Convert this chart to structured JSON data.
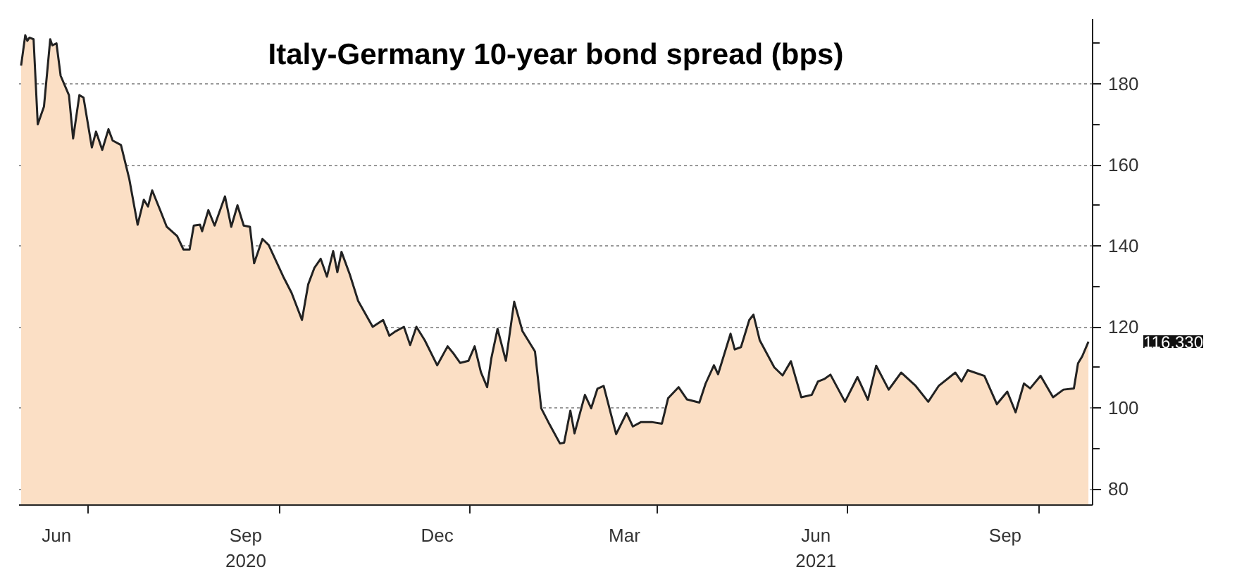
{
  "chart_data": {
    "type": "area",
    "title": "Italy-Germany 10-year bond spread (bps)",
    "x": [
      "2020-05-30",
      "2020-06-01",
      "2020-06-02",
      "2020-06-03",
      "2020-06-05",
      "2020-06-07",
      "2020-06-10",
      "2020-06-13",
      "2020-06-14",
      "2020-06-16",
      "2020-06-18",
      "2020-06-22",
      "2020-06-24",
      "2020-06-27",
      "2020-06-29",
      "2020-07-03",
      "2020-07-05",
      "2020-07-08",
      "2020-07-11",
      "2020-07-13",
      "2020-07-17",
      "2020-07-21",
      "2020-07-25",
      "2020-07-28",
      "2020-07-30",
      "2020-08-01",
      "2020-08-05",
      "2020-08-08",
      "2020-08-13",
      "2020-08-16",
      "2020-08-19",
      "2020-08-21",
      "2020-08-24",
      "2020-08-25",
      "2020-08-28",
      "2020-08-31",
      "2020-09-05",
      "2020-09-08",
      "2020-09-11",
      "2020-09-14",
      "2020-09-17",
      "2020-09-19",
      "2020-09-23",
      "2020-09-26",
      "2020-10-03",
      "2020-10-07",
      "2020-10-12",
      "2020-10-15",
      "2020-10-18",
      "2020-10-21",
      "2020-10-24",
      "2020-10-27",
      "2020-10-29",
      "2020-10-31",
      "2020-11-04",
      "2020-11-08",
      "2020-11-15",
      "2020-11-20",
      "2020-11-23",
      "2020-11-26",
      "2020-11-30",
      "2020-12-03",
      "2020-12-06",
      "2020-12-10",
      "2020-12-16",
      "2020-12-21",
      "2020-12-24",
      "2020-12-27",
      "2020-12-31",
      "2021-01-03",
      "2021-01-06",
      "2021-01-09",
      "2021-01-11",
      "2021-01-14",
      "2021-01-18",
      "2021-01-22",
      "2021-01-26",
      "2021-02-01",
      "2021-02-04",
      "2021-02-08",
      "2021-02-13",
      "2021-02-15",
      "2021-02-18",
      "2021-02-20",
      "2021-02-25",
      "2021-02-28",
      "2021-03-03",
      "2021-03-06",
      "2021-03-12",
      "2021-03-17",
      "2021-03-20",
      "2021-03-24",
      "2021-03-29",
      "2021-04-03",
      "2021-04-06",
      "2021-04-11",
      "2021-04-15",
      "2021-04-21",
      "2021-04-24",
      "2021-04-28",
      "2021-04-30",
      "2021-05-06",
      "2021-05-08",
      "2021-05-11",
      "2021-05-15",
      "2021-05-17",
      "2021-05-20",
      "2021-05-27",
      "2021-05-31",
      "2021-06-04",
      "2021-06-09",
      "2021-06-14",
      "2021-06-17",
      "2021-06-20",
      "2021-06-23",
      "2021-06-30",
      "2021-07-06",
      "2021-07-11",
      "2021-07-15",
      "2021-07-21",
      "2021-07-27",
      "2021-08-03",
      "2021-08-09",
      "2021-08-14",
      "2021-08-22",
      "2021-08-25",
      "2021-08-28",
      "2021-09-05",
      "2021-09-11",
      "2021-09-16",
      "2021-09-20",
      "2021-09-24",
      "2021-09-27",
      "2021-10-02",
      "2021-10-08",
      "2021-10-13",
      "2021-10-18",
      "2021-10-20",
      "2021-10-22",
      "2021-10-25"
    ],
    "series": [
      {
        "color": "#fbdfc5",
        "values": [
          184.5,
          192,
          190.6,
          191.4,
          191,
          170,
          174.4,
          191,
          189.5,
          190,
          182,
          177.2,
          166.5,
          177.2,
          176.6,
          164.3,
          168.2,
          163.7,
          168.8,
          166,
          164.9,
          156.5,
          145.2,
          151.4,
          149.7,
          153.7,
          148.6,
          144.7,
          142.4,
          139.1,
          139.1,
          145,
          145.2,
          143.6,
          148.8,
          145,
          152.2,
          144.7,
          150,
          145,
          144.7,
          135.7,
          141.7,
          140.2,
          132.4,
          128.4,
          121.7,
          130.5,
          134.6,
          136.8,
          132.4,
          138.7,
          133.5,
          138.5,
          132.9,
          126.4,
          120,
          121.7,
          117.8,
          118.9,
          120,
          115.5,
          120,
          116.7,
          110.5,
          115.2,
          113.3,
          111.1,
          111.6,
          115.2,
          108.8,
          105.1,
          112.2,
          119.5,
          111.6,
          126.2,
          118.9,
          113.9,
          99.9,
          95.9,
          91.2,
          91.4,
          99.3,
          93.7,
          103.2,
          99.9,
          104.7,
          105.4,
          93.5,
          98.7,
          95.4,
          96.5,
          96.5,
          96.1,
          102.4,
          105.1,
          102.1,
          101.3,
          106,
          110.5,
          108.3,
          118.3,
          114.4,
          115,
          121.7,
          123,
          116.7,
          110,
          108,
          111.5,
          102.6,
          103.2,
          106.5,
          107.1,
          108.2,
          101.5,
          107.6,
          102,
          110.4,
          104.5,
          108.7,
          105.4,
          101.5,
          105.4,
          108.7,
          106.5,
          109.3,
          107.9,
          100.9,
          104,
          98.9,
          106,
          104.8,
          107.9,
          102.6,
          104.5,
          104.8,
          111,
          112.7,
          116.33
        ]
      }
    ],
    "xlim": [
      "2020-05-29",
      "2021-10-27"
    ],
    "xticks": [
      {
        "value": "2020-07-01",
        "label": null
      },
      {
        "value": "2020-10-01",
        "label": null
      },
      {
        "value": "2021-01-01",
        "label": null
      },
      {
        "value": "2021-04-01",
        "label": null
      },
      {
        "value": "2021-07-01",
        "label": null
      },
      {
        "value": "2021-10-01",
        "label": null
      },
      {
        "value": "2020-06-16",
        "label": "Jun"
      },
      {
        "value": "2020-09-15",
        "label": "Sep\n2020"
      },
      {
        "value": "2020-12-16",
        "label": "Dec"
      },
      {
        "value": "2021-03-16",
        "label": "Mar"
      },
      {
        "value": "2021-06-16",
        "label": "Jun\n2021"
      },
      {
        "value": "2021-09-15",
        "label": "Sep"
      }
    ],
    "ylim": [
      76,
      196
    ],
    "yticks": [
      80,
      {
        "value": 90,
        "label": null
      },
      100,
      {
        "value": 110,
        "label": null
      },
      120,
      {
        "value": 130,
        "label": null
      },
      140,
      {
        "value": 150,
        "label": null
      },
      160,
      {
        "value": 170,
        "label": null
      },
      180,
      {
        "value": 190,
        "label": null
      }
    ],
    "grid": true,
    "annotations": [
      "116.330"
    ]
  }
}
